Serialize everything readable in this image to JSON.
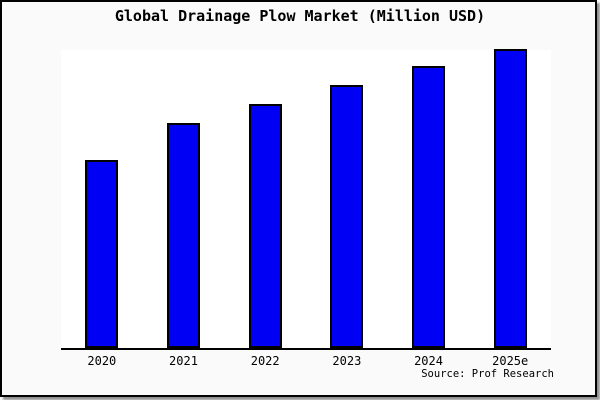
{
  "title": "Global Drainage Plow Market (Million USD)",
  "source": "Source: Prof Research",
  "colors": {
    "bar_fill": "#0000F5",
    "bar_edge": "#000000",
    "plot_background": "#FFFFFF",
    "page_background": "#FAFAFA",
    "frame_border": "#000000",
    "text": "#000000"
  },
  "chart_data": {
    "type": "bar",
    "title": "Global Drainage Plow Market (Million USD)",
    "categories": [
      "2020",
      "2021",
      "2022",
      "2023",
      "2024",
      "2025e"
    ],
    "values": [
      62.9,
      75.3,
      81.6,
      88.0,
      94.3,
      100.0
    ],
    "values_note": "No y-axis scale is shown in the chart; values are relative bar heights with 2025e = 100",
    "xlabel": "",
    "ylabel": "",
    "ylim": [
      0,
      100.3
    ],
    "grid": false,
    "legend": false,
    "bar_color": "#0000F5",
    "bar_edge_color": "#000000",
    "annotation": "Source: Prof Research"
  }
}
